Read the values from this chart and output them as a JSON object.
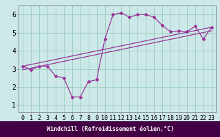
{
  "xlabel": "Windchill (Refroidissement éolien,°C)",
  "background_color": "#cce8e8",
  "plot_bg_color": "#cce8e8",
  "label_bg_color": "#440044",
  "label_text_color": "#ffffff",
  "grid_color": "#99ccbb",
  "line_color": "#993399",
  "spine_color": "#888899",
  "xlim_min": -0.5,
  "xlim_max": 23.5,
  "ylim_min": 0.6,
  "ylim_max": 6.5,
  "xticks": [
    0,
    1,
    2,
    3,
    4,
    5,
    6,
    7,
    8,
    9,
    10,
    11,
    12,
    13,
    14,
    15,
    16,
    17,
    18,
    19,
    20,
    21,
    22,
    23
  ],
  "yticks": [
    1,
    2,
    3,
    4,
    5,
    6
  ],
  "line1_x": [
    0,
    1,
    2,
    3,
    4,
    5,
    6,
    7,
    8,
    9,
    10,
    11,
    12,
    13,
    14,
    15,
    16,
    17,
    18,
    19,
    20,
    21,
    22,
    23
  ],
  "line1_y": [
    3.15,
    2.95,
    3.15,
    3.15,
    2.6,
    2.5,
    1.45,
    1.45,
    2.3,
    2.4,
    4.65,
    6.0,
    6.1,
    5.85,
    6.0,
    6.0,
    5.85,
    5.4,
    5.05,
    5.1,
    5.05,
    5.35,
    4.65,
    5.3
  ],
  "line2_x": [
    0,
    23
  ],
  "line2_y": [
    3.15,
    5.3
  ],
  "line3_x": [
    0,
    23
  ],
  "line3_y": [
    2.95,
    5.1
  ],
  "tick_fontsize": 6,
  "label_fontsize": 6
}
